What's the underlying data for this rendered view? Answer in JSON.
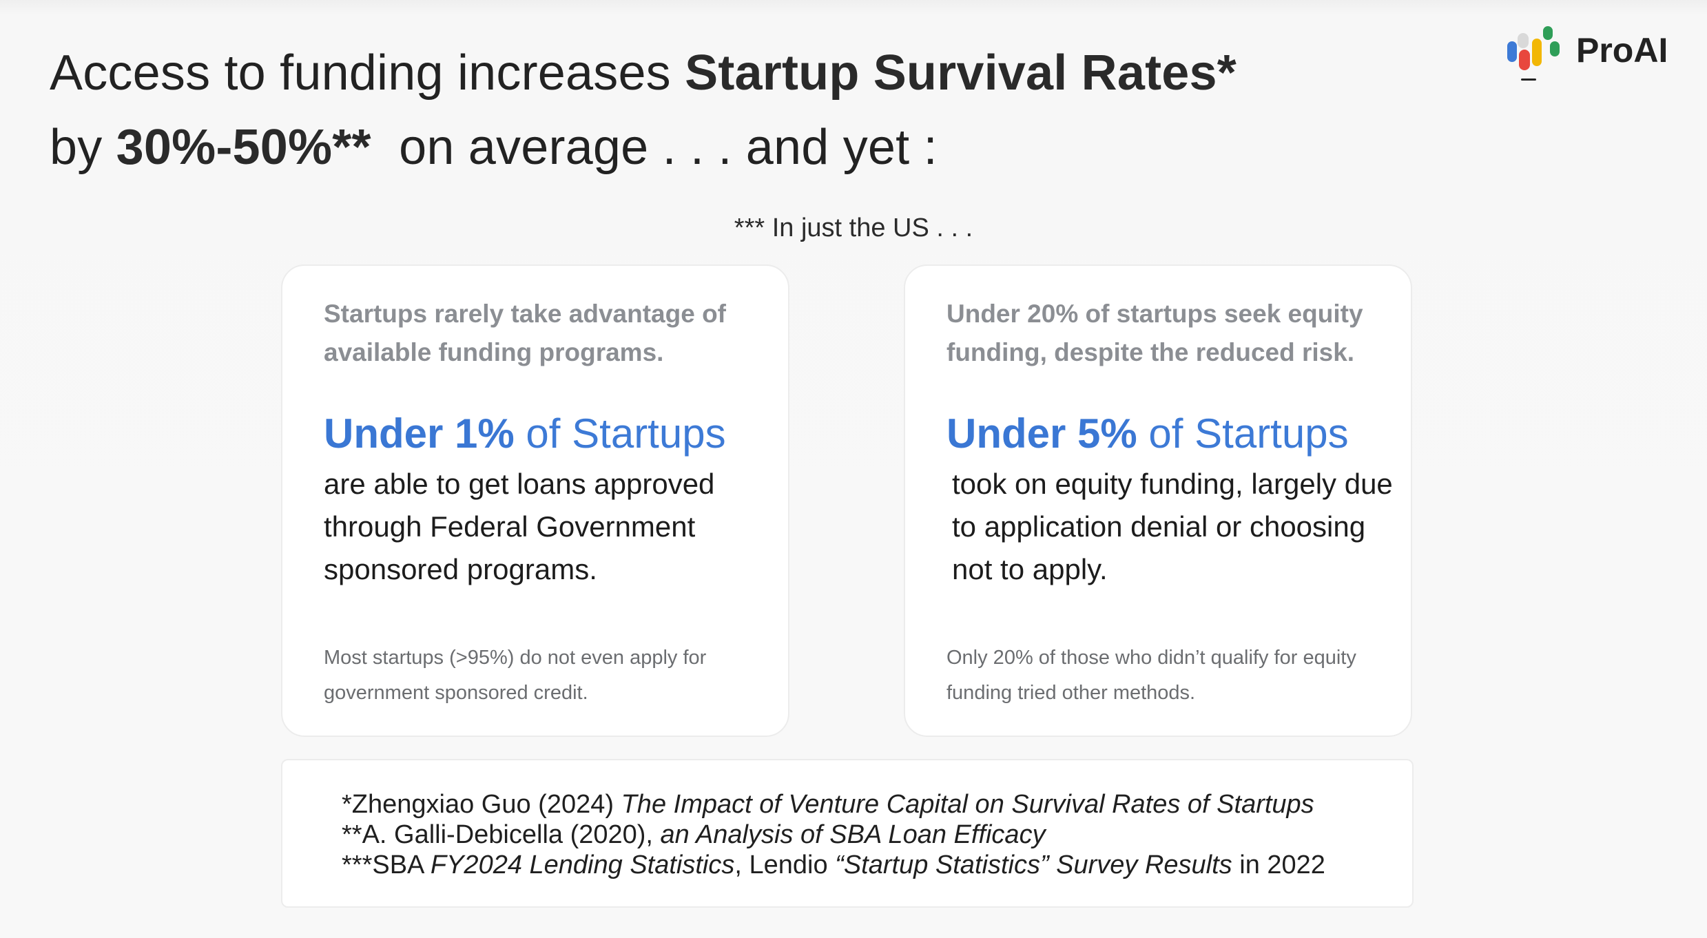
{
  "headline": {
    "line1_prefix": "Access to funding increases ",
    "line1_bold": "Startup Survival Rates*",
    "line2_prefix": "by ",
    "line2_bold": "30%-50%**",
    "line2_suffix": "  on average . . . and yet :"
  },
  "logo": {
    "name": "ProAI",
    "colors": [
      "#e8473d",
      "#f2b705",
      "#2f9e58",
      "#3d7ad6",
      "#d9d9d9"
    ]
  },
  "subnote": "*** In just the US . . .",
  "cards": [
    {
      "lead": "Startups rarely take advantage of available funding programs.",
      "stat_bold": "Under 1%",
      "stat_rest": " of Startups",
      "body": "are able to get loans approved through Federal Government sponsored programs.",
      "foot": "Most startups (>95%) do not even apply for government sponsored credit."
    },
    {
      "lead": "Under 20% of startups seek equity funding, despite the reduced risk.",
      "stat_bold": "Under 5%",
      "stat_rest": " of Startups",
      "body": "took on equity funding, largely due to application denial or choosing not to apply.",
      "foot": "Only 20% of those who didn’t qualify for equity funding tried other methods."
    }
  ],
  "references": [
    {
      "prefix": "*Zhengxiao Guo (2024) ",
      "italic": "The Impact of Venture Capital on Survival Rates of Startups",
      "suffix": ""
    },
    {
      "prefix": "**A. Galli-Debicella (2020), ",
      "italic": "an Analysis of SBA Loan Efficacy",
      "suffix": ""
    },
    {
      "prefix": "***SBA ",
      "italic": "FY2024 Lending Statistics",
      "middle": ", Lendio ",
      "italic2": "“Startup Statistics” Survey Results",
      "suffix": " in 2022"
    }
  ],
  "colors": {
    "accent_blue": "#3d7ad6",
    "muted_gray": "#8b8e93",
    "background": "#f7f7f7"
  }
}
